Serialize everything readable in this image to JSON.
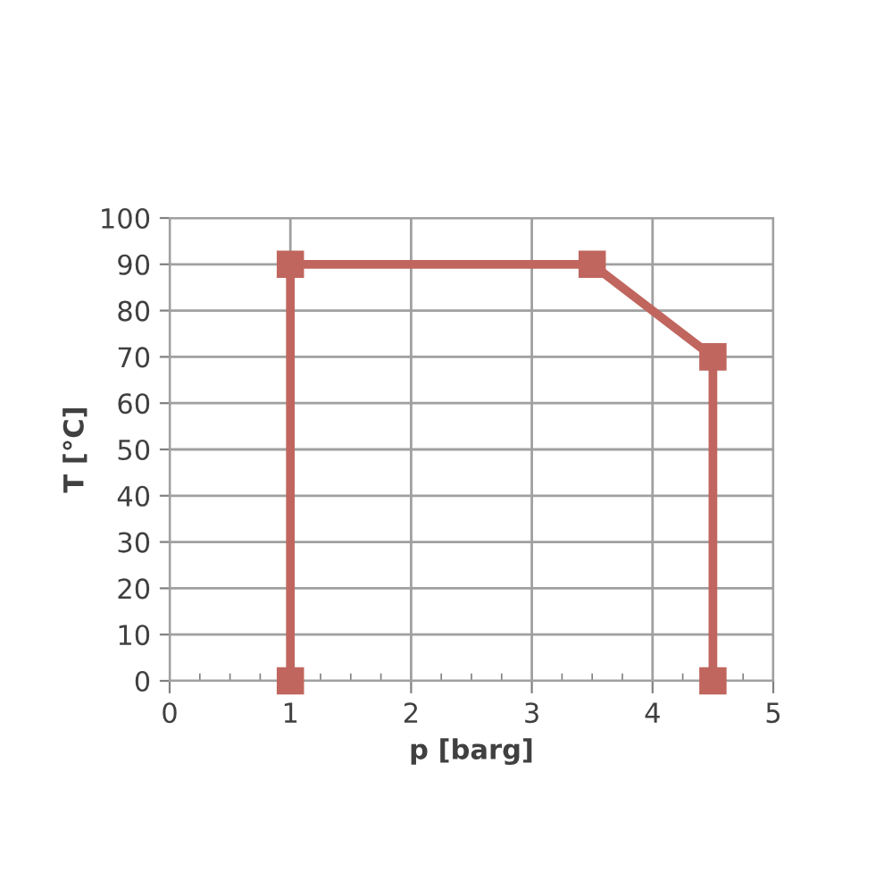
{
  "chart_data": {
    "type": "line",
    "xlabel": "p [barg]",
    "ylabel": "T [°C]",
    "series": [
      {
        "color": "#c0665e",
        "x": [
          1,
          1,
          3.5,
          4.5,
          4.5
        ],
        "values": [
          0,
          90,
          90,
          70,
          0
        ]
      }
    ],
    "xlim": [
      0,
      5
    ],
    "ylim": [
      0,
      100
    ],
    "xticks": [
      0,
      {
        "value": 0.25,
        "label": null
      },
      {
        "value": 0.5,
        "label": null
      },
      {
        "value": 0.75,
        "label": null
      },
      1,
      {
        "value": 1.25,
        "label": null
      },
      {
        "value": 1.5,
        "label": null
      },
      {
        "value": 1.75,
        "label": null
      },
      2,
      {
        "value": 2.25,
        "label": null
      },
      {
        "value": 2.5,
        "label": null
      },
      {
        "value": 2.75,
        "label": null
      },
      3,
      {
        "value": 3.25,
        "label": null
      },
      {
        "value": 3.5,
        "label": null
      },
      {
        "value": 3.75,
        "label": null
      },
      4,
      {
        "value": 4.25,
        "label": null
      },
      {
        "value": 4.5,
        "label": null
      },
      {
        "value": 4.75,
        "label": null
      },
      5
    ],
    "yticks": [
      0,
      10,
      20,
      30,
      40,
      50,
      60,
      70,
      80,
      90,
      100
    ],
    "grid": true,
    "marker": "square",
    "line_style": "solid",
    "legend": false
  }
}
